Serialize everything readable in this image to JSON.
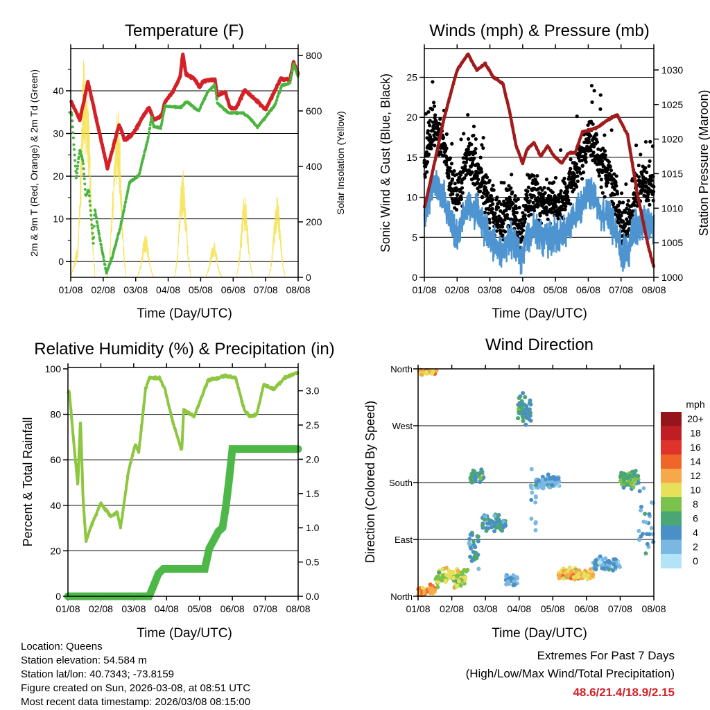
{
  "info": {
    "location": "Location: Queens",
    "elevation": "Station elevation: 54.584 m",
    "latlon": "Station lat/lon: 40.7343; -73.8159",
    "created": "Figure created on Sun, 2026-03-08, at 08:51 UTC",
    "recent": "Most recent data timestamp: 2026/03/08 08:15:00"
  },
  "extremes": {
    "title": "Extremes For Past 7 Days",
    "subtitle": "(High/Low/Max Wind/Total Precipitation)",
    "values": "48.6/21.4/18.9/2.15"
  },
  "colors": {
    "temp": "#d42027",
    "dewpoint": "#4ab43f",
    "solar": "#f5de3e",
    "wind": "#4d94d0",
    "gust": "#000000",
    "pressure": "#a01c1c",
    "rh": "#8dc63f",
    "rain": "#4db848"
  },
  "chart_data": [
    {
      "type": "line",
      "title": "Temperature (F)",
      "xlabel": "Time (Day/UTC)",
      "ylabel": "2m & 9m T (Red, Orange) & 2m Td (Green)",
      "y2label": "Solar Insolation (Yellow)",
      "xticks": [
        "01/08",
        "02/08",
        "03/08",
        "04/08",
        "05/08",
        "06/08",
        "07/08",
        "08/08"
      ],
      "xlim": [
        0,
        7
      ],
      "ylim": [
        -3.7,
        49.9
      ],
      "y2lim": [
        0,
        825
      ],
      "yticks": [
        0,
        10,
        20,
        30,
        40
      ],
      "y2ticks": [
        0,
        200,
        400,
        600,
        800
      ],
      "series": [
        {
          "name": "2m T",
          "points": [
            [
              0,
              37.2
            ],
            [
              0.03,
              37.2
            ],
            [
              0.28,
              33.2
            ],
            [
              0.53,
              42.1
            ],
            [
              1.13,
              21.8
            ],
            [
              1.49,
              32
            ],
            [
              1.66,
              28.5
            ],
            [
              1.87,
              29.6
            ],
            [
              2.0,
              30.9
            ],
            [
              2.23,
              34.1
            ],
            [
              2.41,
              36.1
            ],
            [
              2.55,
              33.2
            ],
            [
              2.8,
              34.1
            ],
            [
              2.9,
              37.4
            ],
            [
              3.15,
              39.8
            ],
            [
              3.37,
              43.4
            ],
            [
              3.45,
              48.6
            ],
            [
              3.55,
              43.9
            ],
            [
              3.8,
              42.9
            ],
            [
              3.97,
              40.7
            ],
            [
              4.08,
              42.3
            ],
            [
              4.44,
              42.6
            ],
            [
              4.51,
              38.9
            ],
            [
              4.76,
              39.7
            ],
            [
              4.9,
              36.1
            ],
            [
              5.08,
              35.8
            ],
            [
              5.36,
              40.2
            ],
            [
              5.72,
              37.7
            ],
            [
              6.0,
              35.6
            ],
            [
              6.47,
              42.9
            ],
            [
              6.57,
              42.6
            ],
            [
              6.75,
              42.6
            ],
            [
              6.86,
              46.7
            ],
            [
              7.0,
              43.9
            ]
          ]
        },
        {
          "name": "2m Td",
          "points": [
            [
              0,
              34.8
            ],
            [
              0.03,
              34.8
            ],
            [
              0.17,
              19.5
            ],
            [
              0.28,
              26.3
            ],
            [
              0.38,
              23.4
            ],
            [
              0.46,
              15.3
            ],
            [
              0.56,
              16.9
            ],
            [
              0.7,
              3.9
            ],
            [
              0.74,
              12.5
            ],
            [
              0.88,
              6
            ],
            [
              1.1,
              -2.6
            ],
            [
              1.28,
              1.1
            ],
            [
              1.53,
              8.1
            ],
            [
              1.81,
              18.5
            ],
            [
              2.1,
              20.2
            ],
            [
              2.38,
              28.8
            ],
            [
              2.49,
              34.1
            ],
            [
              2.55,
              31.7
            ],
            [
              2.77,
              31.2
            ],
            [
              2.9,
              36.4
            ],
            [
              3.37,
              36.1
            ],
            [
              3.58,
              37.4
            ],
            [
              3.94,
              35.3
            ],
            [
              4.22,
              39.8
            ],
            [
              4.44,
              41.3
            ],
            [
              4.51,
              37.2
            ],
            [
              4.86,
              34.8
            ],
            [
              5.29,
              34.8
            ],
            [
              5.5,
              33.7
            ],
            [
              5.75,
              31.5
            ],
            [
              5.93,
              33.2
            ],
            [
              6.28,
              36.6
            ],
            [
              6.5,
              41.3
            ],
            [
              6.75,
              41.8
            ],
            [
              6.86,
              46.2
            ],
            [
              7.0,
              43.4
            ]
          ]
        },
        {
          "name": "Solar Insolation",
          "daily_peaks": [
            [
              0.22,
              110
            ],
            [
              0.42,
              825
            ],
            [
              0.5,
              700
            ],
            [
              1.38,
              480
            ],
            [
              1.45,
              625
            ],
            [
              2.3,
              157
            ],
            [
              3.45,
              400
            ],
            [
              4.4,
              130
            ],
            [
              5.35,
              305
            ],
            [
              6.35,
              300
            ]
          ]
        }
      ]
    },
    {
      "type": "scatter",
      "title": "Winds (mph) & Pressure (mb)",
      "xlabel": "Time (Day/UTC)",
      "ylabel": "Sonic Wind & Gust (Blue, Black)",
      "y2label": "Station Pressure (Maroon)",
      "xticks": [
        "01/08",
        "02/08",
        "03/08",
        "04/08",
        "05/08",
        "06/08",
        "07/08",
        "08/08"
      ],
      "xlim": [
        0,
        7
      ],
      "ylim": [
        0,
        28.6
      ],
      "y2lim": [
        1000,
        1033.1
      ],
      "yticks": [
        0,
        5,
        10,
        15,
        20,
        25
      ],
      "y2ticks": [
        1000,
        1005,
        1010,
        1015,
        1020,
        1025,
        1030
      ],
      "series": [
        {
          "name": "Sonic Wind",
          "points": [
            [
              0,
              8
            ],
            [
              0.3,
              12
            ],
            [
              0.6,
              10
            ],
            [
              0.8,
              7
            ],
            [
              1.0,
              5
            ],
            [
              1.3,
              9
            ],
            [
              1.6,
              8
            ],
            [
              2.0,
              5
            ],
            [
              2.3,
              3
            ],
            [
              2.6,
              5
            ],
            [
              2.8,
              4
            ],
            [
              2.95,
              2
            ],
            [
              3.1,
              5
            ],
            [
              3.4,
              6
            ],
            [
              3.6,
              5
            ],
            [
              3.9,
              5
            ],
            [
              4.2,
              5
            ],
            [
              4.5,
              7
            ],
            [
              4.8,
              9
            ],
            [
              5.0,
              11
            ],
            [
              5.2,
              10
            ],
            [
              5.4,
              8
            ],
            [
              5.7,
              7
            ],
            [
              5.9,
              5
            ],
            [
              6.0,
              3
            ],
            [
              6.2,
              3
            ],
            [
              6.4,
              6
            ],
            [
              6.7,
              7
            ],
            [
              7,
              6
            ]
          ]
        },
        {
          "name": "Gust",
          "max": 26.3
        },
        {
          "name": "Station Pressure",
          "points": [
            [
              0,
              1010
            ],
            [
              0.17,
              1013.5
            ],
            [
              0.6,
              1023
            ],
            [
              1.0,
              1030
            ],
            [
              1.33,
              1032.3
            ],
            [
              1.6,
              1030
            ],
            [
              1.86,
              1030.9
            ],
            [
              2.1,
              1029
            ],
            [
              2.4,
              1028
            ],
            [
              2.6,
              1024
            ],
            [
              2.8,
              1019
            ],
            [
              3.0,
              1016.5
            ],
            [
              3.13,
              1018.5
            ],
            [
              3.34,
              1019.5
            ],
            [
              3.55,
              1017.5
            ],
            [
              3.76,
              1019
            ],
            [
              3.97,
              1017.5
            ],
            [
              4.19,
              1016.5
            ],
            [
              4.4,
              1018
            ],
            [
              4.6,
              1018
            ],
            [
              4.82,
              1021
            ],
            [
              5.24,
              1021.6
            ],
            [
              5.67,
              1023
            ],
            [
              5.88,
              1023.5
            ],
            [
              6.2,
              1020.6
            ],
            [
              6.5,
              1012
            ],
            [
              6.83,
              1004.5
            ],
            [
              7,
              1001.5
            ]
          ]
        }
      ]
    },
    {
      "type": "line",
      "title": "Relative Humidity (%) & Precipitation (in)",
      "xlabel": "Time (Day/UTC)",
      "ylabel": "Percent & Total Rainfall",
      "xticks": [
        "01/08",
        "02/08",
        "03/08",
        "04/08",
        "05/08",
        "06/08",
        "07/08",
        "08/08"
      ],
      "xlim": [
        0,
        7
      ],
      "ylim": [
        0,
        100.6
      ],
      "y2lim": [
        0,
        3.34
      ],
      "yticks": [
        0,
        20,
        40,
        60,
        80,
        100
      ],
      "y2ticks": [
        "0.0",
        "0.5",
        "1.0",
        "1.5",
        "2.0",
        "2.5",
        "3.0"
      ],
      "series": [
        {
          "name": "Relative Humidity",
          "points": [
            [
              0,
              90
            ],
            [
              0.04,
              90
            ],
            [
              0.2,
              64
            ],
            [
              0.3,
              49
            ],
            [
              0.38,
              78
            ],
            [
              0.46,
              43
            ],
            [
              0.55,
              24
            ],
            [
              0.68,
              30
            ],
            [
              1.0,
              41
            ],
            [
              1.3,
              35
            ],
            [
              1.5,
              37
            ],
            [
              1.6,
              30
            ],
            [
              1.84,
              55
            ],
            [
              2.05,
              67
            ],
            [
              2.15,
              63
            ],
            [
              2.36,
              91
            ],
            [
              2.47,
              96
            ],
            [
              2.78,
              96
            ],
            [
              2.95,
              91
            ],
            [
              3.2,
              76
            ],
            [
              3.46,
              64
            ],
            [
              3.52,
              82
            ],
            [
              3.84,
              79
            ],
            [
              4.05,
              87
            ],
            [
              4.26,
              95
            ],
            [
              4.58,
              96
            ],
            [
              4.8,
              97
            ],
            [
              5.1,
              96
            ],
            [
              5.36,
              82
            ],
            [
              5.53,
              79
            ],
            [
              5.74,
              80
            ],
            [
              5.95,
              93
            ],
            [
              6.27,
              91
            ],
            [
              6.58,
              96
            ],
            [
              6.9,
              98
            ],
            [
              7,
              98
            ]
          ]
        },
        {
          "name": "Total Rainfall",
          "points": [
            [
              0,
              0
            ],
            [
              2.47,
              0
            ],
            [
              2.6,
              0.15
            ],
            [
              2.75,
              0.33
            ],
            [
              2.9,
              0.4
            ],
            [
              4.16,
              0.4
            ],
            [
              4.3,
              0.7
            ],
            [
              4.58,
              0.95
            ],
            [
              4.7,
              1.0
            ],
            [
              4.8,
              1.3
            ],
            [
              4.9,
              1.7
            ],
            [
              5.0,
              2.15
            ],
            [
              7,
              2.15
            ]
          ]
        }
      ]
    },
    {
      "type": "scatter",
      "title": "Wind Direction",
      "xlabel": "Time (Day/UTC)",
      "ylabel": "Direction (Colored By Speed)",
      "xticks": [
        "01/08",
        "02/08",
        "03/08",
        "04/08",
        "05/08",
        "06/08",
        "07/08",
        "08/08"
      ],
      "xlim": [
        0,
        7
      ],
      "ylim": [
        0,
        360
      ],
      "yticks": [
        {
          "deg": 0,
          "label": "North"
        },
        {
          "deg": 90,
          "label": "East"
        },
        {
          "deg": 180,
          "label": "South"
        },
        {
          "deg": 270,
          "label": "West"
        },
        {
          "deg": 360,
          "label": "North"
        }
      ],
      "clusters": [
        [
          0,
          0.5,
          10,
          10,
          13,
          70
        ],
        [
          0,
          0.55,
          355,
          6,
          12,
          40
        ],
        [
          0.5,
          1.5,
          30,
          20,
          10,
          90
        ],
        [
          1.5,
          1.8,
          80,
          40,
          5,
          30
        ],
        [
          1.55,
          1.95,
          190,
          15,
          7,
          50
        ],
        [
          1.9,
          2.6,
          115,
          18,
          5,
          70
        ],
        [
          2.6,
          2.95,
          25,
          15,
          4,
          25
        ],
        [
          2.95,
          3.35,
          295,
          30,
          6,
          60
        ],
        [
          3.35,
          3.5,
          150,
          70,
          3,
          15
        ],
        [
          3.5,
          4.2,
          180,
          15,
          4,
          80
        ],
        [
          4.15,
          5.2,
          35,
          12,
          12,
          140
        ],
        [
          5.2,
          6.0,
          50,
          15,
          4,
          60
        ],
        [
          6.0,
          6.55,
          185,
          18,
          8,
          80
        ],
        [
          6.55,
          7,
          120,
          90,
          4,
          25
        ]
      ],
      "legend": {
        "title": "mph",
        "labels": [
          "20+",
          "18",
          "16",
          "14",
          "12",
          "10",
          "8",
          "6",
          "4",
          "2",
          "0"
        ],
        "colors": [
          "#94161b",
          "#c01e25",
          "#e0342a",
          "#ef6629",
          "#f6a84a",
          "#e6e05a",
          "#7bc24c",
          "#4aa672",
          "#4a8fc6",
          "#7ab8e3",
          "#b3e3f7"
        ]
      }
    }
  ]
}
